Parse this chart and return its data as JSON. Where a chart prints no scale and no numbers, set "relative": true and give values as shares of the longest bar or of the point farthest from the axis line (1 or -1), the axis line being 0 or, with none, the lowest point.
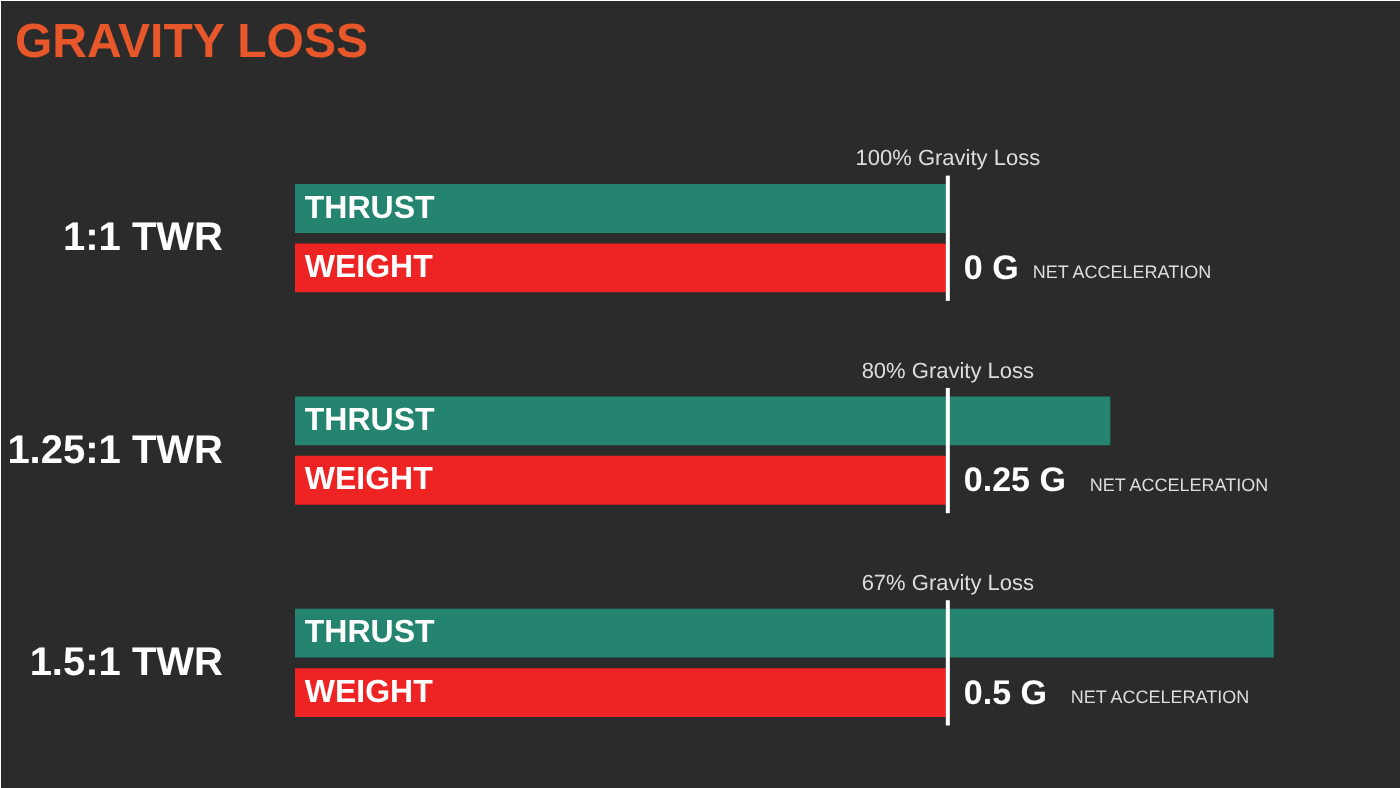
{
  "chart_data": {
    "type": "bar",
    "orientation": "horizontal",
    "relative": true,
    "title": "GRAVITY LOSS",
    "categories": [
      "1:1 TWR",
      "1.25:1 TWR",
      "1.5:1 TWR"
    ],
    "series": [
      {
        "name": "THRUST",
        "color": "#24846f",
        "values": [
          0.667,
          0.833,
          1.0
        ]
      },
      {
        "name": "WEIGHT",
        "color": "#ee2323",
        "values": [
          0.667,
          0.667,
          0.667
        ]
      }
    ],
    "ref_lines": [
      {
        "axis": "x",
        "value": 0.667,
        "color": "#ffffff"
      }
    ],
    "annotations": [
      "100% Gravity Loss",
      "0 G",
      "NET ACCELERATION",
      "80% Gravity Loss",
      "0.25 G",
      "NET ACCELERATION",
      "67% Gravity Loss",
      "0.5 G",
      "NET ACCELERATION"
    ],
    "grid": false
  }
}
